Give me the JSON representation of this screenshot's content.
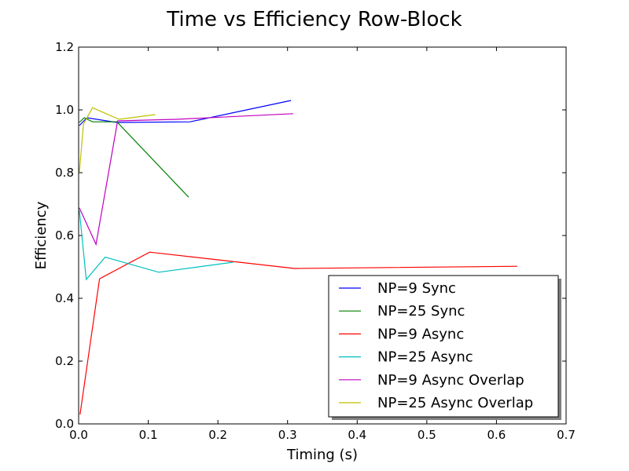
{
  "chart_data": {
    "type": "line",
    "title": "Time vs Efficiency Row-Block",
    "xlabel": "Timing (s)",
    "ylabel": "Efficiency",
    "xlim": [
      0.0,
      0.7
    ],
    "ylim": [
      0.0,
      1.2
    ],
    "xticks": [
      "0.0",
      "0.1",
      "0.2",
      "0.3",
      "0.4",
      "0.5",
      "0.6",
      "0.7"
    ],
    "yticks": [
      "0.0",
      "0.2",
      "0.4",
      "0.6",
      "0.8",
      "1.0",
      "1.2"
    ],
    "grid": false,
    "legend_position": "lower-right",
    "series": [
      {
        "name": "NP=9 Sync",
        "color": "#0000ff",
        "points": [
          [
            0.001,
            0.95
          ],
          [
            0.012,
            0.975
          ],
          [
            0.055,
            0.96
          ],
          [
            0.16,
            0.962
          ],
          [
            0.305,
            1.03
          ]
        ]
      },
      {
        "name": "NP=25 Sync",
        "color": "#008000",
        "points": [
          [
            0.001,
            0.96
          ],
          [
            0.008,
            0.975
          ],
          [
            0.02,
            0.962
          ],
          [
            0.055,
            0.962
          ],
          [
            0.158,
            0.722
          ]
        ]
      },
      {
        "name": "NP=9 Async",
        "color": "#ff0000",
        "points": [
          [
            0.002,
            0.03
          ],
          [
            0.03,
            0.462
          ],
          [
            0.102,
            0.547
          ],
          [
            0.31,
            0.495
          ],
          [
            0.63,
            0.502
          ]
        ]
      },
      {
        "name": "NP=25 Async",
        "color": "#00bfbf",
        "points": [
          [
            0.001,
            0.68
          ],
          [
            0.011,
            0.46
          ],
          [
            0.038,
            0.531
          ],
          [
            0.115,
            0.483
          ],
          [
            0.222,
            0.515
          ]
        ]
      },
      {
        "name": "NP=9 Async Overlap",
        "color": "#bf00bf",
        "points": [
          [
            0.001,
            0.688
          ],
          [
            0.025,
            0.572
          ],
          [
            0.056,
            0.965
          ],
          [
            0.14,
            0.97
          ],
          [
            0.308,
            0.988
          ]
        ]
      },
      {
        "name": "NP=25 Async Overlap",
        "color": "#bfbf00",
        "points": [
          [
            0.001,
            0.8
          ],
          [
            0.007,
            0.955
          ],
          [
            0.02,
            1.007
          ],
          [
            0.058,
            0.97
          ],
          [
            0.11,
            0.985
          ]
        ]
      }
    ]
  }
}
